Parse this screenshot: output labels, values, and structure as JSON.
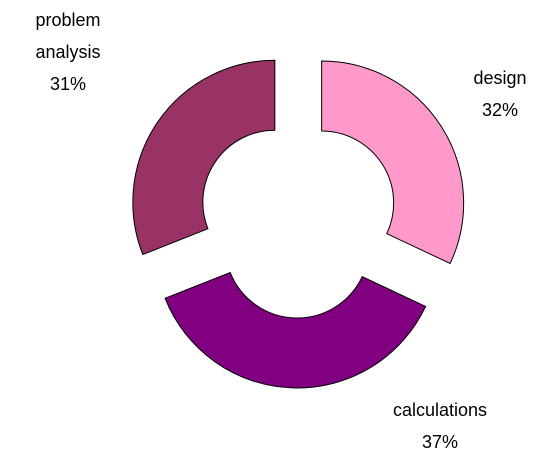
{
  "chart_data": {
    "type": "donut",
    "categories": [
      "design",
      "calculations",
      "problem analysis"
    ],
    "values": [
      32,
      37,
      31
    ],
    "value_labels": [
      "32%",
      "37%",
      "31%"
    ],
    "colors": [
      "#ff99cc",
      "#800080",
      "#993366"
    ]
  }
}
